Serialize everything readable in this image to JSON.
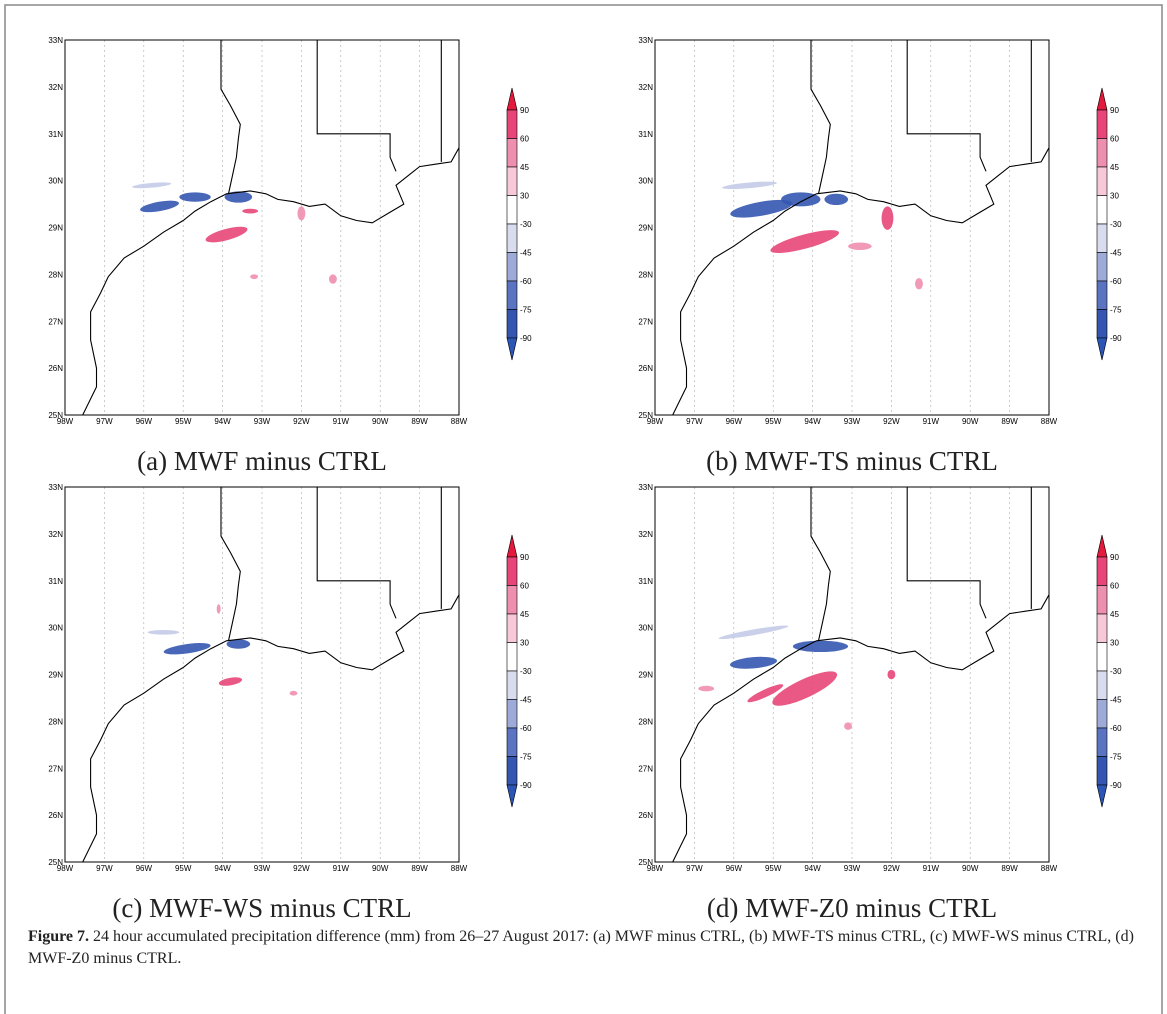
{
  "lat_labels": [
    "33N",
    "32N",
    "31N",
    "30N",
    "29N",
    "28N",
    "27N",
    "26N",
    "25N"
  ],
  "lon_labels": [
    "98W",
    "97W",
    "96W",
    "95W",
    "94W",
    "93W",
    "92W",
    "91W",
    "90W",
    "89W",
    "88W"
  ],
  "colorbar_labels": [
    90,
    60,
    45,
    30,
    -30,
    -45,
    -60,
    -75,
    -90
  ],
  "panels": [
    {
      "caption": "(a) MWF minus CTRL"
    },
    {
      "caption": "(b) MWF-TS minus CTRL"
    },
    {
      "caption": "(c) MWF-WS minus CTRL"
    },
    {
      "caption": "(d) MWF-Z0 minus CTRL"
    }
  ],
  "figure_caption": {
    "label": "Figure 7.",
    "text": "24 hour accumulated precipitation difference (mm) from 26–27 August 2017: (a) MWF minus CTRL, (b) MWF-TS minus CTRL, (c) MWF-WS minus CTRL, (d) MWF-Z0 minus CTRL."
  }
}
